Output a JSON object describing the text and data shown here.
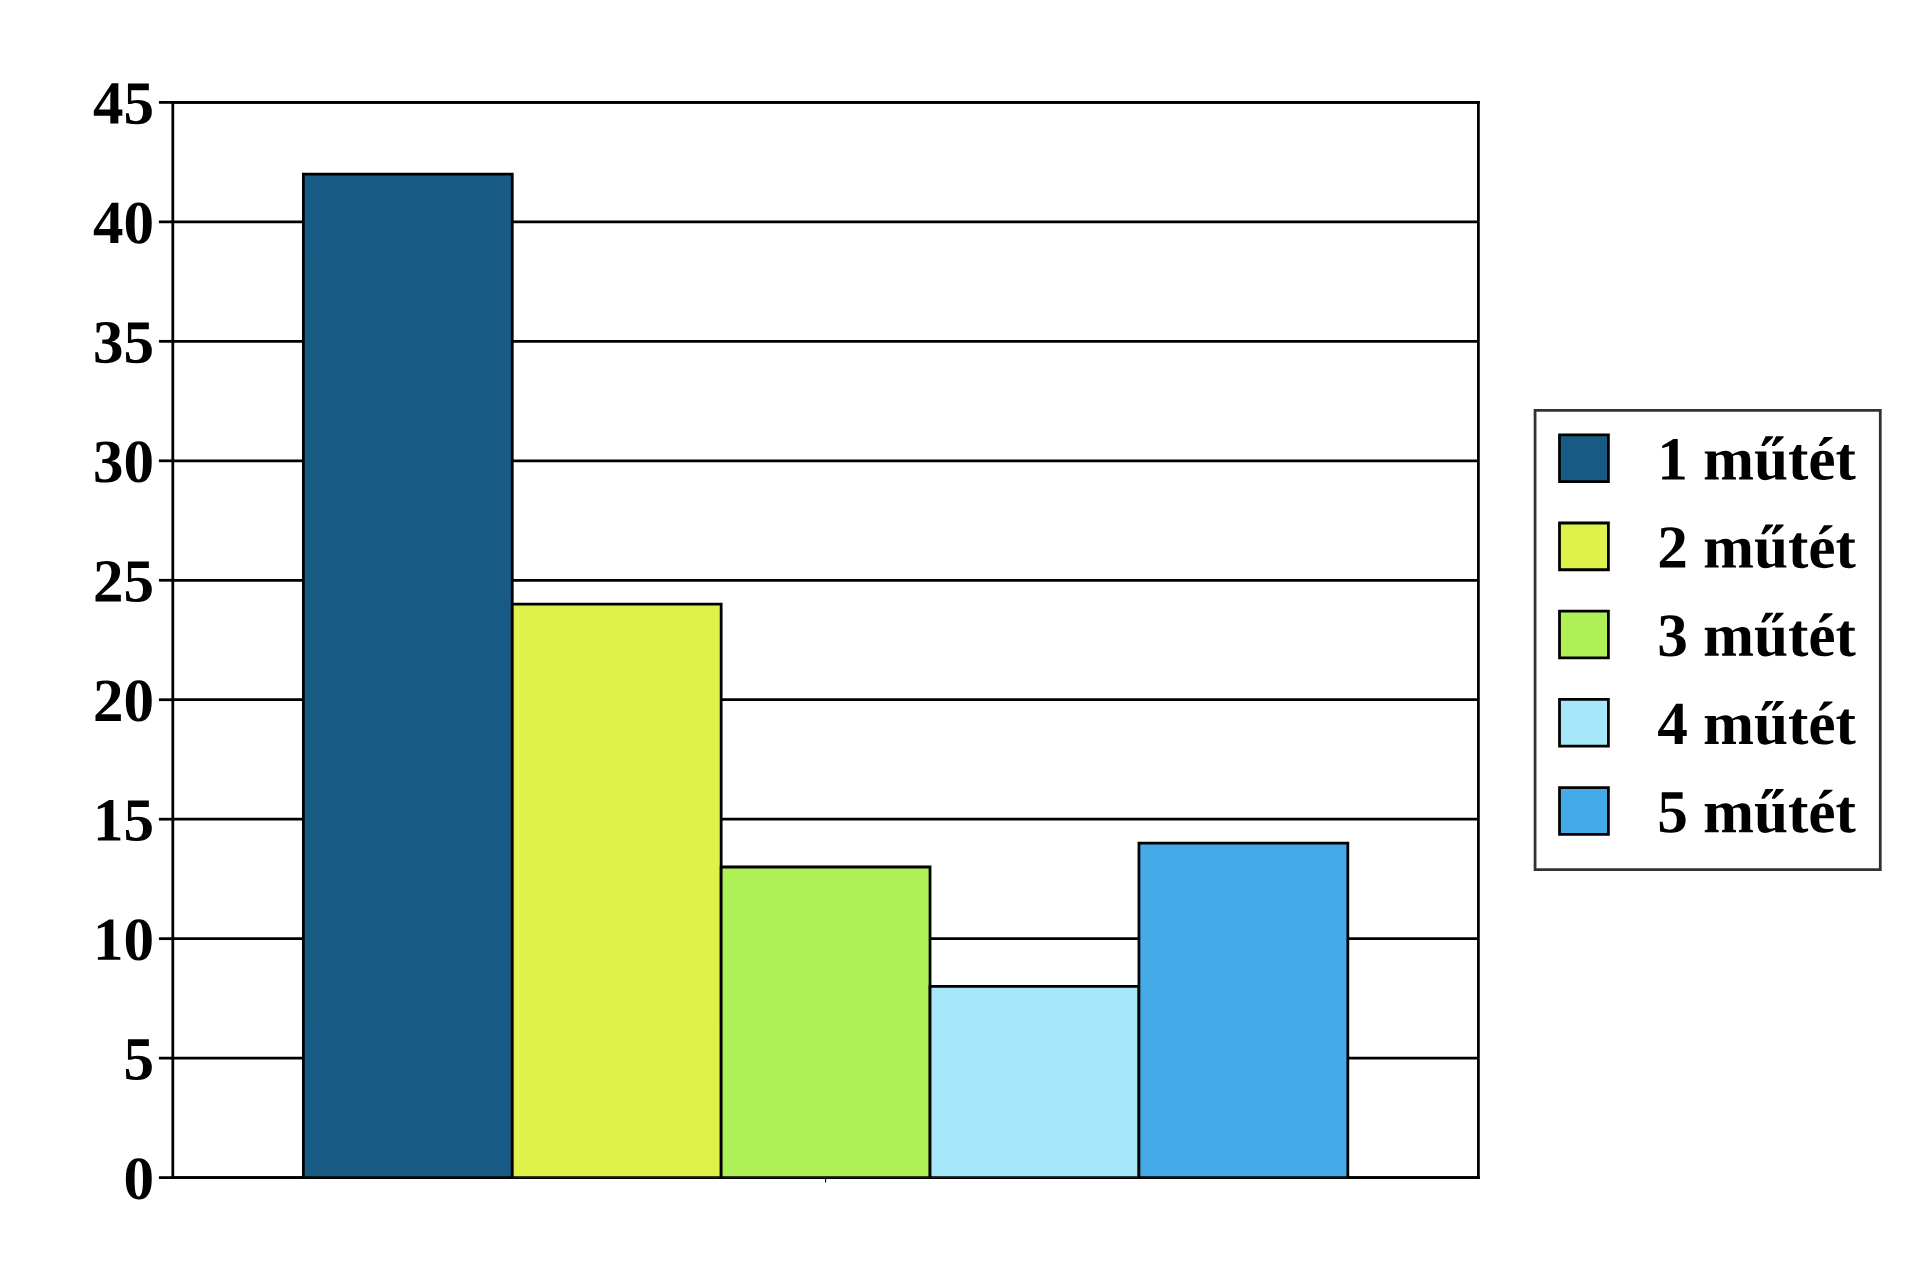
{
  "chart_data": {
    "type": "bar",
    "categories": [
      null
    ],
    "series": [
      {
        "name": "1 műtét",
        "color": "#175a84",
        "values": [
          42
        ]
      },
      {
        "name": "2 műtét",
        "color": "#dff24c",
        "values": [
          24
        ]
      },
      {
        "name": "3 műtét",
        "color": "#b0f057",
        "values": [
          13
        ]
      },
      {
        "name": "4 műtét",
        "color": "#a6e7fa",
        "values": [
          8
        ]
      },
      {
        "name": "5 műtét",
        "color": "#44aae8",
        "values": [
          14
        ]
      }
    ],
    "ylim": [
      0,
      45
    ],
    "yticks": [
      0,
      5,
      10,
      15,
      20,
      25,
      30,
      35,
      40,
      45
    ],
    "grid": "y",
    "legend": "right"
  }
}
